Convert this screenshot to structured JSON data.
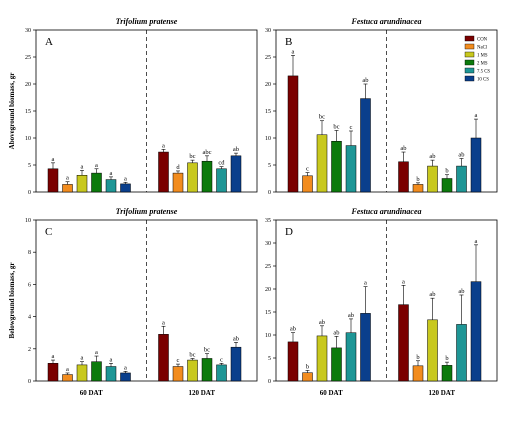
{
  "chart_data": {
    "type": "bar",
    "legend": {
      "placement": "top-right of panel B",
      "entries": [
        "CON",
        "NaCl",
        "1 MS",
        "2 MS",
        "7.5 CS",
        "10 CS"
      ]
    },
    "series_colors": [
      "#7a0000",
      "#f28c1e",
      "#c8c81e",
      "#0c7a0c",
      "#1e9696",
      "#0a3f8c"
    ],
    "groups": [
      "60 DAT",
      "120 DAT"
    ],
    "panels": [
      {
        "label": "A",
        "title": "Trifolium pratense",
        "ylabel": "Aboveground biomass, gr",
        "ylim": [
          0,
          30
        ],
        "yticks": [
          0,
          5,
          10,
          15,
          20,
          25,
          30
        ],
        "show_xlabels": false,
        "show_legend": false,
        "bars": [
          {
            "group": "60 DAT",
            "values": [
              4.3,
              1.4,
              3.1,
              3.5,
              2.3,
              1.5
            ],
            "errors": [
              1.1,
              0.5,
              0.9,
              0.8,
              0.5,
              0.3
            ],
            "letters": [
              "a",
              "a",
              "a",
              "a",
              "a",
              "a"
            ]
          },
          {
            "group": "120 DAT",
            "values": [
              7.4,
              3.5,
              5.4,
              5.7,
              4.3,
              6.7
            ],
            "errors": [
              0.5,
              0.4,
              0.5,
              1.0,
              0.4,
              0.5
            ],
            "letters": [
              "a",
              "d",
              "bc",
              "abc",
              "cd",
              "ab"
            ]
          }
        ]
      },
      {
        "label": "B",
        "title": "Festuca arundinacea",
        "ylabel": "",
        "ylim": [
          0,
          30
        ],
        "yticks": [
          0,
          5,
          10,
          15,
          20,
          25,
          30
        ],
        "show_xlabels": false,
        "show_legend": true,
        "bars": [
          {
            "group": "60 DAT",
            "values": [
              21.5,
              3.0,
              10.6,
              9.4,
              8.6,
              17.3
            ],
            "errors": [
              3.8,
              0.6,
              2.6,
              2.0,
              2.7,
              2.7
            ],
            "letters": [
              "a",
              "c",
              "bc",
              "bc",
              "c",
              "ab"
            ]
          },
          {
            "group": "120 DAT",
            "values": [
              5.6,
              1.4,
              4.8,
              2.5,
              4.8,
              10.0
            ],
            "errors": [
              1.8,
              0.3,
              1.1,
              0.7,
              1.4,
              3.5
            ],
            "letters": [
              "ab",
              "b",
              "ab",
              "b",
              "ab",
              "a"
            ]
          }
        ]
      },
      {
        "label": "C",
        "title": "Trifolium pratense",
        "ylabel": "Belowground biomass, gr",
        "ylim": [
          0,
          10
        ],
        "yticks": [
          0,
          2,
          4,
          6,
          8,
          10
        ],
        "show_xlabels": true,
        "show_legend": false,
        "bars": [
          {
            "group": "60 DAT",
            "values": [
              1.1,
              0.4,
              1.0,
              1.2,
              0.9,
              0.5
            ],
            "errors": [
              0.2,
              0.1,
              0.2,
              0.35,
              0.2,
              0.1
            ],
            "letters": [
              "a",
              "a",
              "a",
              "a",
              "a",
              "a"
            ]
          },
          {
            "group": "120 DAT",
            "values": [
              2.9,
              0.9,
              1.3,
              1.4,
              1.0,
              2.1
            ],
            "errors": [
              0.5,
              0.15,
              0.1,
              0.3,
              0.1,
              0.3
            ],
            "letters": [
              "a",
              "c",
              "bc",
              "bc",
              "c",
              "ab"
            ]
          }
        ]
      },
      {
        "label": "D",
        "title": "Festuca arundinacea",
        "ylabel": "",
        "ylim": [
          0,
          35
        ],
        "yticks": [
          0,
          5,
          10,
          15,
          20,
          25,
          30,
          35
        ],
        "show_xlabels": true,
        "show_legend": false,
        "bars": [
          {
            "group": "60 DAT",
            "values": [
              8.5,
              1.8,
              9.8,
              7.2,
              10.5,
              14.7
            ],
            "errors": [
              2.0,
              0.5,
              2.2,
              2.5,
              3.0,
              5.8
            ],
            "letters": [
              "ab",
              "b",
              "ab",
              "ab",
              "ab",
              "a"
            ]
          },
          {
            "group": "120 DAT",
            "values": [
              16.6,
              3.3,
              13.3,
              3.4,
              12.3,
              21.6
            ],
            "errors": [
              4.2,
              1.1,
              4.7,
              0.7,
              6.4,
              8.0
            ],
            "letters": [
              "a",
              "b",
              "ab",
              "b",
              "ab",
              "a"
            ]
          }
        ]
      }
    ]
  }
}
